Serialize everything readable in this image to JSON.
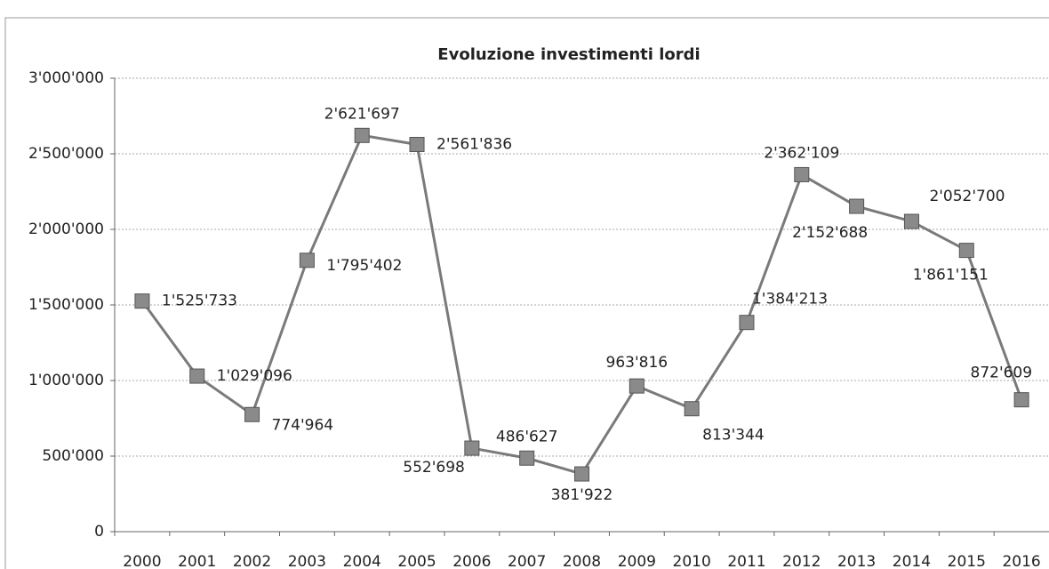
{
  "chart_data": {
    "type": "line",
    "title": "Evoluzione investimenti lordi",
    "categories": [
      "2000",
      "2001",
      "2002",
      "2003",
      "2004",
      "2005",
      "2006",
      "2007",
      "2008",
      "2009",
      "2010",
      "2011",
      "2012",
      "2013",
      "2014",
      "2015",
      "2016"
    ],
    "series": [
      {
        "color": "#7a7a7a",
        "values": [
          1525733,
          1029096,
          774964,
          1795402,
          2621697,
          2561836,
          552698,
          486627,
          381922,
          963816,
          813344,
          1384213,
          2362109,
          2152688,
          2052700,
          1861151,
          872609
        ],
        "value_labels": [
          "1'525'733",
          "1'029'096",
          "774'964",
          "1'795'402",
          "2'621'697",
          "2'561'836",
          "552'698",
          "486'627",
          "381'922",
          "963'816",
          "813'344",
          "1'384'213",
          "2'362'109",
          "2'152'688",
          "2'052'700",
          "1'861'151",
          "872'609"
        ]
      }
    ],
    "ylim": [
      0,
      3000000
    ],
    "yticks": [
      0,
      {
        "value": 500000,
        "label": "500'000"
      },
      {
        "value": 1000000,
        "label": "1'000'000"
      },
      {
        "value": 1500000,
        "label": "1'500'000"
      },
      {
        "value": 2000000,
        "label": "2'000'000"
      },
      {
        "value": 2500000,
        "label": "2'500'000"
      },
      {
        "value": 3000000,
        "label": "3'000'000"
      }
    ],
    "grid": true
  }
}
